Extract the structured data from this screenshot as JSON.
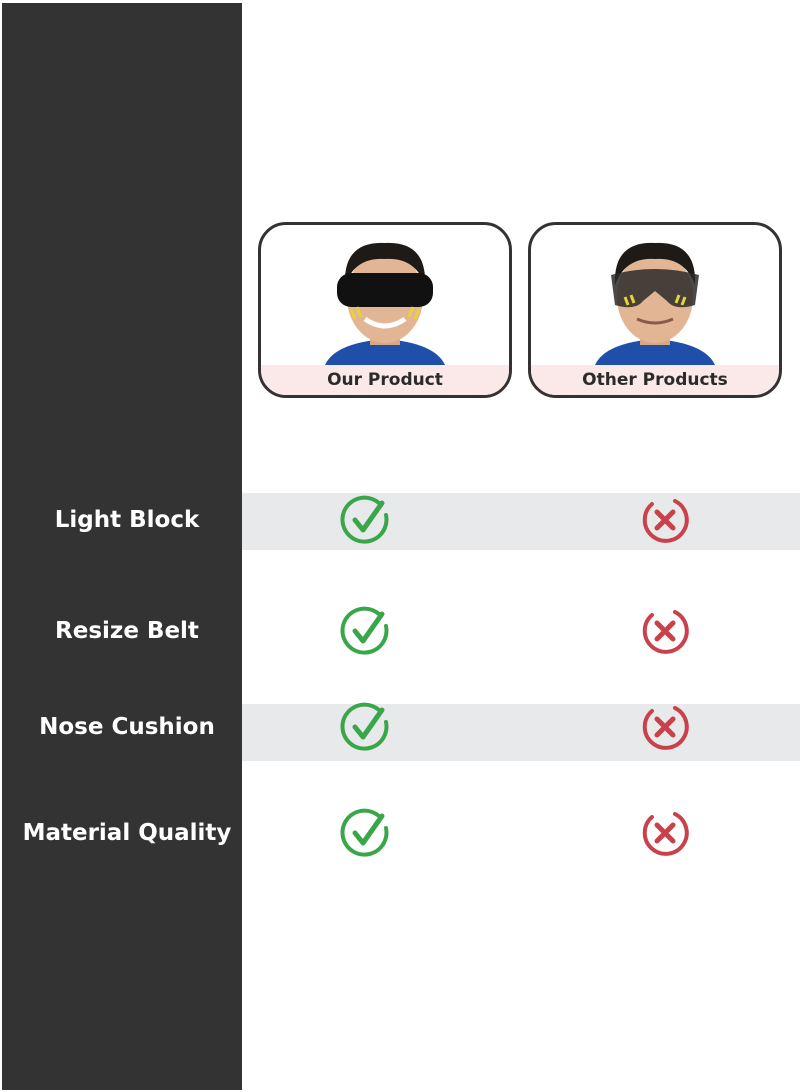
{
  "products": [
    {
      "label": "Our Product",
      "mask": "full-block"
    },
    {
      "label": "Other Products",
      "mask": "partial"
    }
  ],
  "features": [
    {
      "label": "Light Block",
      "ours": "check",
      "others": "cross"
    },
    {
      "label": "Resize Belt",
      "ours": "check",
      "others": "cross"
    },
    {
      "label": "Nose Cushion",
      "ours": "check",
      "others": "cross"
    },
    {
      "label": "Material Quality",
      "ours": "check",
      "others": "cross"
    }
  ],
  "colors": {
    "sidebar": "#333333",
    "check": "#3aa64a",
    "cross": "#c8414b",
    "band": "#e8e9ea",
    "caption_bg": "#fbe9ea"
  }
}
